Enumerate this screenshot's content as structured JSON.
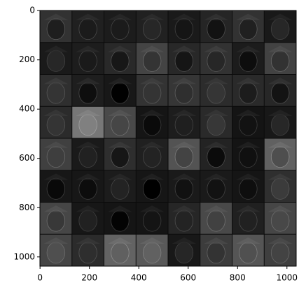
{
  "chart_data": {
    "type": "image",
    "xlim": [
      -0.5,
      1037.5
    ],
    "ylim": [
      1037.5,
      -0.5
    ],
    "xticks": [
      0,
      200,
      400,
      600,
      800,
      1000
    ],
    "yticks": [
      0,
      200,
      400,
      600,
      800,
      1000
    ],
    "grid_rows": 8,
    "grid_cols": 8
  }
}
